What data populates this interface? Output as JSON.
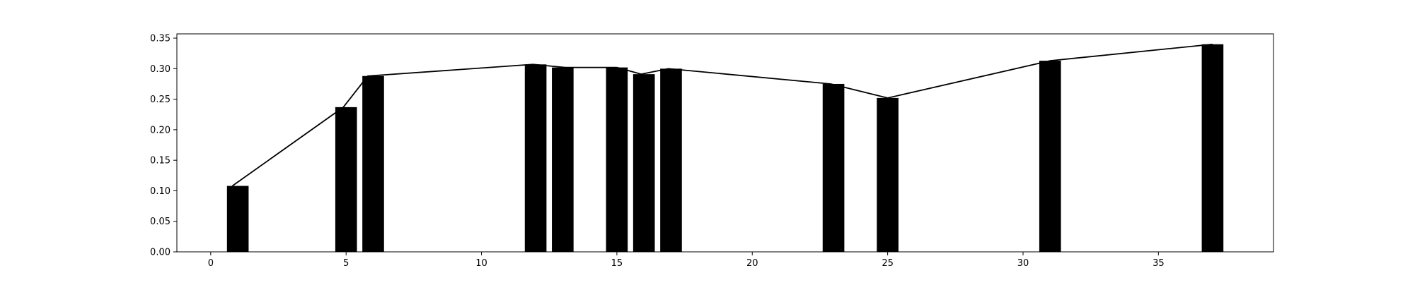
{
  "chart_data": {
    "type": "bar",
    "title": "",
    "xlabel": "",
    "ylabel": "",
    "xlim": [
      -1.25,
      39.25
    ],
    "ylim": [
      0,
      0.357
    ],
    "xticks": [
      0,
      5,
      10,
      15,
      20,
      25,
      30,
      35
    ],
    "yticks": [
      0.0,
      0.05,
      0.1,
      0.15,
      0.2,
      0.25,
      0.3,
      0.35
    ],
    "grid": false,
    "legend": "none",
    "bar_width": 0.8,
    "x": [
      1,
      5,
      6,
      12,
      13,
      15,
      16,
      17,
      23,
      25,
      31,
      37
    ],
    "values": [
      0.108,
      0.237,
      0.288,
      0.307,
      0.302,
      0.302,
      0.291,
      0.3,
      0.275,
      0.252,
      0.313,
      0.34
    ],
    "line": {
      "x": [
        0.8,
        4.9,
        5.8,
        11.9,
        13.1,
        15.0,
        15.9,
        16.9,
        22.9,
        25.0,
        31.0,
        37.0
      ],
      "values": [
        0.108,
        0.237,
        0.288,
        0.307,
        0.302,
        0.302,
        0.291,
        0.3,
        0.275,
        0.252,
        0.313,
        0.34
      ]
    },
    "colors": {
      "bar": "#000000",
      "line": "#000000",
      "axes": "#000000"
    }
  }
}
